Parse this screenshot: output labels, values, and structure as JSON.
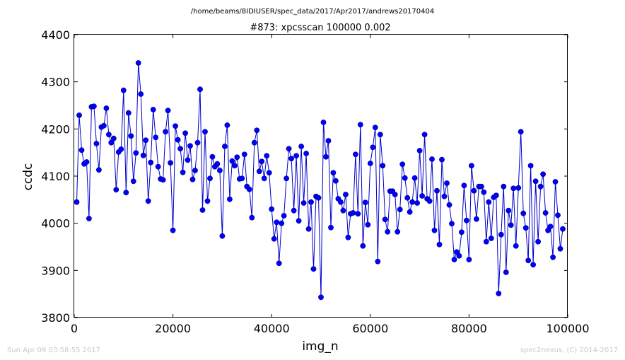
{
  "chart_data": {
    "type": "line",
    "suptitle": "/home/beams/8IDIUSER/spec_data/2017/Apr2017/andrews20170404",
    "title": "#873: xpcsscan 100000 0.002",
    "xlabel": "img_n",
    "ylabel": "ccdc",
    "xlim": [
      0,
      100000
    ],
    "ylim": [
      3800,
      4400
    ],
    "x_ticks": [
      "0",
      "20000",
      "40000",
      "60000",
      "80000",
      "100000"
    ],
    "y_ticks": [
      "3800",
      "3900",
      "4000",
      "4100",
      "4200",
      "4300",
      "4400"
    ],
    "grid": false,
    "series": [
      {
        "name": "",
        "color": "#0000ff",
        "marker": "circle",
        "x_start": 500,
        "x_step": 500,
        "values": [
          4045,
          4229,
          4155,
          4126,
          4130,
          4010,
          4247,
          4248,
          4169,
          4113,
          4204,
          4207,
          4244,
          4188,
          4171,
          4180,
          4071,
          4151,
          4157,
          4282,
          4065,
          4234,
          4185,
          4089,
          4149,
          4340,
          4274,
          4144,
          4176,
          4047,
          4129,
          4241,
          4182,
          4120,
          4094,
          4092,
          4194,
          4239,
          4128,
          3985,
          4206,
          4177,
          4158,
          4108,
          4191,
          4134,
          4164,
          4093,
          4112,
          4171,
          4284,
          4028,
          4194,
          4047,
          4095,
          4141,
          4120,
          4126,
          4112,
          3973,
          4163,
          4208,
          4051,
          4132,
          4122,
          4140,
          4094,
          4095,
          4146,
          4078,
          4072,
          4012,
          4171,
          4197,
          4110,
          4131,
          4095,
          4143,
          4107,
          4030,
          3967,
          4002,
          3915,
          4000,
          4016,
          4095,
          4158,
          4137,
          4027,
          4143,
          4005,
          4163,
          4043,
          4148,
          3988,
          4045,
          3903,
          4057,
          4054,
          3843,
          4214,
          4141,
          4175,
          3991,
          4107,
          4090,
          4052,
          4045,
          4027,
          4061,
          3970,
          4020,
          4022,
          4146,
          4020,
          4209,
          3952,
          4044,
          3997,
          4127,
          4161,
          4203,
          3919,
          4188,
          4122,
          4008,
          3982,
          4068,
          4068,
          4061,
          3982,
          4029,
          4125,
          4096,
          4054,
          4024,
          4045,
          4096,
          4043,
          4154,
          4058,
          4188,
          4052,
          4047,
          4136,
          3985,
          4069,
          3955,
          4135,
          4057,
          4085,
          4039,
          3999,
          3923,
          3939,
          3931,
          3981,
          4080,
          4006,
          3923,
          4122,
          4069,
          4009,
          4078,
          4078,
          4066,
          3961,
          4045,
          3968,
          4055,
          4059,
          3851,
          3976,
          4078,
          3896,
          4027,
          3996,
          4074,
          3952,
          4075,
          4194,
          4021,
          3990,
          3921,
          4122,
          3912,
          4089,
          3961,
          4078,
          4104,
          4022,
          3985,
          3993,
          3928,
          4088,
          4017,
          3946,
          3988
        ]
      }
    ]
  },
  "footer": {
    "left": "Sun Apr 09 03:58:55 2017",
    "right": "spec2nexus, (C) 2014-2017"
  }
}
